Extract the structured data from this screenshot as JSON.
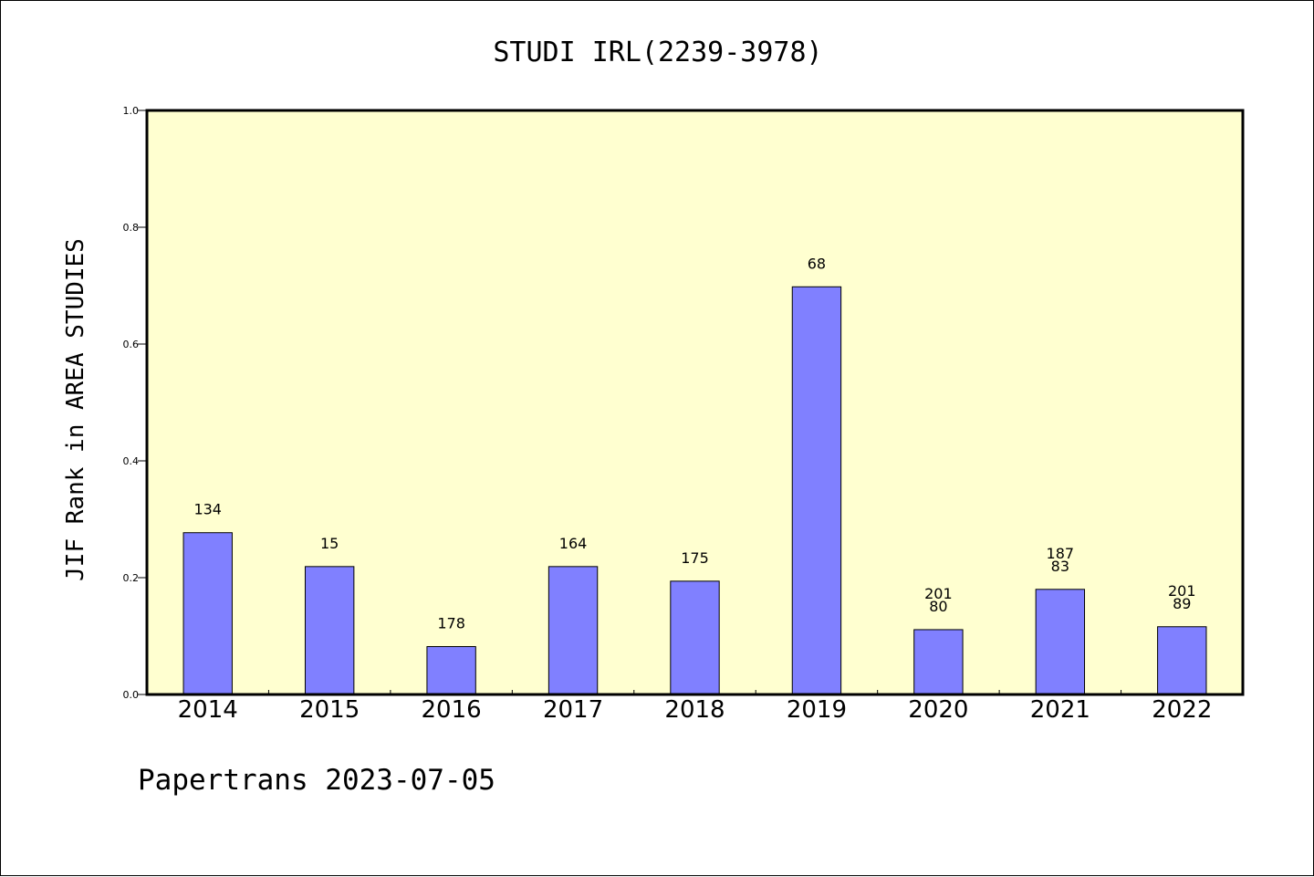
{
  "chart_data": {
    "type": "bar",
    "title": "STUDI IRL(2239-3978)",
    "ylabel": "JIF Rank in AREA STUDIES",
    "xlabel": "",
    "categories": [
      "2014",
      "2015",
      "2016",
      "2017",
      "2018",
      "2019",
      "2020",
      "2021",
      "2022"
    ],
    "values": [
      0.277,
      0.219,
      0.082,
      0.219,
      0.194,
      0.698,
      0.111,
      0.18,
      0.116
    ],
    "labels": [
      [
        "134"
      ],
      [
        "15"
      ],
      [
        "178"
      ],
      [
        "164"
      ],
      [
        "175"
      ],
      [
        "68"
      ],
      [
        "201",
        "80"
      ],
      [
        "187",
        "83"
      ],
      [
        "201",
        "89"
      ]
    ],
    "ylim": [
      0,
      1.0
    ],
    "yticks": [
      "0.0",
      "0.2",
      "0.4",
      "0.6",
      "0.8",
      "1.0"
    ],
    "grid": false,
    "colors": {
      "bar": "#8080ff",
      "plot_bg": "#ffffd0",
      "axis": "#000000"
    }
  },
  "footer": {
    "text": "Papertrans 2023-07-05"
  }
}
